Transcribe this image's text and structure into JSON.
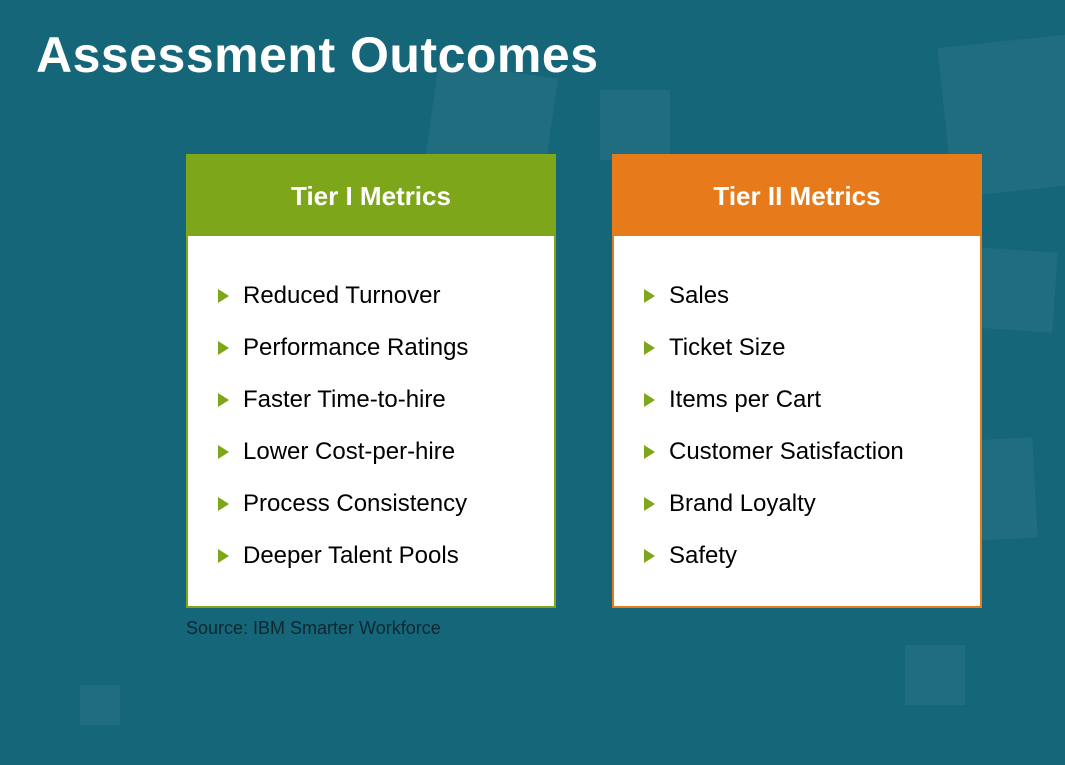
{
  "background_color": "#16667a",
  "title": "Assessment Outcomes",
  "title_color": "#ffffff",
  "title_fontsize": 50,
  "bullet_arrow_color": "#7ea61a",
  "tier1": {
    "header_label": "Tier I Metrics",
    "header_bg": "#7ea61a",
    "border_color": "#7ea61a",
    "items": [
      "Reduced Turnover",
      "Performance Ratings",
      "Faster Time-to-hire",
      "Lower Cost-per-hire",
      "Process Consistency",
      "Deeper Talent Pools"
    ]
  },
  "tier2": {
    "header_label": "Tier II Metrics",
    "header_bg": "#e77b1c",
    "border_color": "#e77b1c",
    "items": [
      "Sales",
      "Ticket Size",
      "Items per Cart",
      "Customer Satisfaction",
      "Brand Loyalty",
      "Safety"
    ]
  },
  "source": "Source: IBM Smarter Workforce",
  "body_fontsize": 24,
  "header_fontsize": 26
}
